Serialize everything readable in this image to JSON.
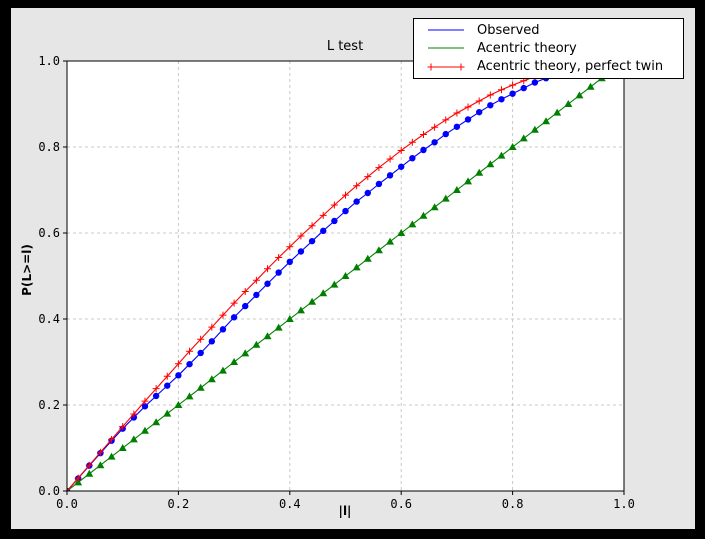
{
  "window": {
    "background": "#000000"
  },
  "colors": {
    "figure_bg": "#e6e6e6",
    "plot_bg": "#ffffff",
    "grid": "#c8c8c8",
    "axis": "#000000",
    "text": "#000000",
    "legend_bg": "#ffffff",
    "legend_border": "#000000"
  },
  "chart_data": {
    "type": "line",
    "title": "L test",
    "xlabel": "|l|",
    "ylabel": "P(L>=l)",
    "xlim": [
      0.0,
      1.0
    ],
    "ylim": [
      0.0,
      1.0
    ],
    "x_ticks": [
      0.0,
      0.2,
      0.4,
      0.6,
      0.8,
      1.0
    ],
    "x_tick_labels": [
      "0.0",
      "0.2",
      "0.4",
      "0.6",
      "0.8",
      "1.0"
    ],
    "y_ticks": [
      0.0,
      0.2,
      0.4,
      0.6,
      0.8,
      1.0
    ],
    "y_tick_labels": [
      "0.0",
      "0.2",
      "0.4",
      "0.6",
      "0.8",
      "1.0"
    ],
    "grid": "dashed",
    "legend_position": "upper right",
    "x": [
      0.0,
      0.02,
      0.04,
      0.06,
      0.08,
      0.1,
      0.12,
      0.14,
      0.16,
      0.18,
      0.2,
      0.22,
      0.24,
      0.26,
      0.28,
      0.3,
      0.32,
      0.34,
      0.36,
      0.38,
      0.4,
      0.42,
      0.44,
      0.46,
      0.48,
      0.5,
      0.52,
      0.54,
      0.56,
      0.58,
      0.6,
      0.62,
      0.64,
      0.66,
      0.68,
      0.7,
      0.72,
      0.74,
      0.76,
      0.78,
      0.8,
      0.82,
      0.84,
      0.86,
      0.88,
      0.9,
      0.92,
      0.94,
      0.96,
      0.98,
      1.0
    ],
    "series": [
      {
        "name": "Observed",
        "color": "#0000ff",
        "marker": "circle",
        "legend_marker_shown": false,
        "values": [
          0.0,
          0.029,
          0.059,
          0.088,
          0.117,
          0.145,
          0.171,
          0.197,
          0.221,
          0.245,
          0.269,
          0.295,
          0.321,
          0.348,
          0.376,
          0.404,
          0.43,
          0.456,
          0.482,
          0.508,
          0.533,
          0.557,
          0.581,
          0.605,
          0.628,
          0.651,
          0.673,
          0.693,
          0.714,
          0.734,
          0.754,
          0.774,
          0.793,
          0.811,
          0.83,
          0.847,
          0.864,
          0.881,
          0.897,
          0.911,
          0.924,
          0.937,
          0.95,
          0.96,
          0.969,
          0.977,
          0.984,
          0.989,
          0.993,
          0.997,
          1.0
        ]
      },
      {
        "name": "Acentric theory",
        "color": "#008000",
        "marker": "triangle-up",
        "legend_marker_shown": false,
        "values": [
          0.0,
          0.02,
          0.04,
          0.06,
          0.08,
          0.1,
          0.12,
          0.14,
          0.16,
          0.18,
          0.2,
          0.22,
          0.24,
          0.26,
          0.28,
          0.3,
          0.32,
          0.34,
          0.36,
          0.38,
          0.4,
          0.42,
          0.44,
          0.46,
          0.48,
          0.5,
          0.52,
          0.54,
          0.56,
          0.58,
          0.6,
          0.62,
          0.64,
          0.66,
          0.68,
          0.7,
          0.72,
          0.74,
          0.76,
          0.78,
          0.8,
          0.82,
          0.84,
          0.86,
          0.88,
          0.9,
          0.92,
          0.94,
          0.96,
          0.98,
          1.0
        ]
      },
      {
        "name": "Acentric theory, perfect twin",
        "color": "#ff0000",
        "marker": "plus",
        "legend_marker_shown": true,
        "values": [
          0.0,
          0.03,
          0.06,
          0.09,
          0.12,
          0.15,
          0.179,
          0.209,
          0.238,
          0.267,
          0.296,
          0.325,
          0.353,
          0.381,
          0.409,
          0.437,
          0.464,
          0.49,
          0.517,
          0.543,
          0.568,
          0.593,
          0.617,
          0.641,
          0.665,
          0.688,
          0.71,
          0.731,
          0.752,
          0.772,
          0.792,
          0.811,
          0.829,
          0.846,
          0.863,
          0.879,
          0.893,
          0.907,
          0.921,
          0.933,
          0.944,
          0.954,
          0.964,
          0.972,
          0.979,
          0.986,
          0.991,
          0.994,
          0.997,
          0.999,
          1.0
        ]
      }
    ]
  }
}
